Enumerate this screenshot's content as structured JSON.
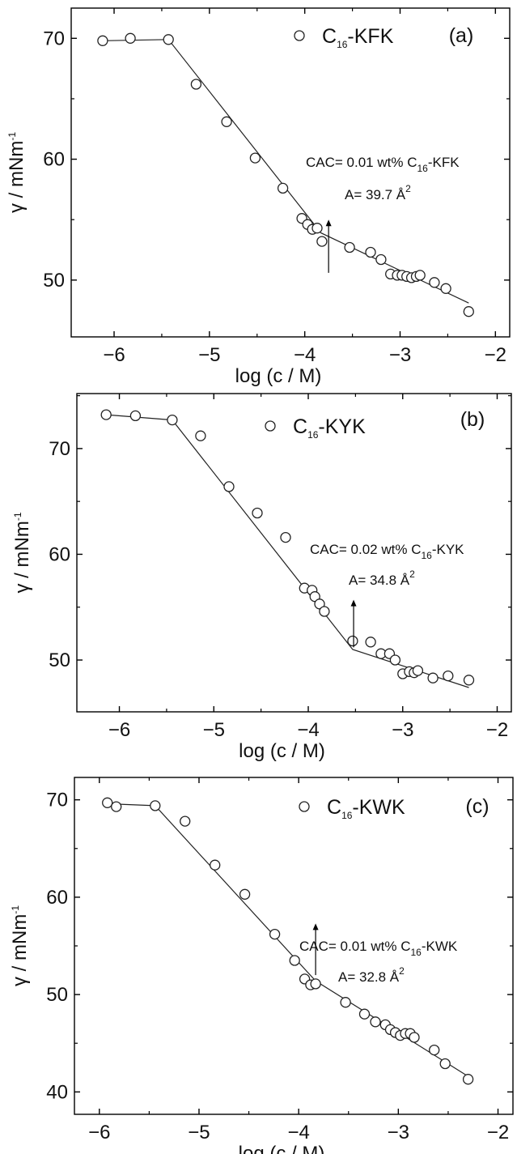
{
  "figure": {
    "colors": {
      "axis": "#000000",
      "marker_edge": "#222222",
      "marker_fill": "#ffffff",
      "fit_line": "#222222"
    }
  },
  "chart_data": [
    {
      "type": "scatter",
      "panel_label": "(a)",
      "xlabel": "log (c / M)",
      "ylabel": "γ / mNm",
      "ylabel_superscript": "-1",
      "xlim": [
        -6.45,
        -1.85
      ],
      "ylim": [
        45.3,
        72.5
      ],
      "xticks": [
        -6,
        -5,
        -4,
        -3,
        -2
      ],
      "yticks": [
        50,
        60,
        70
      ],
      "legend": {
        "marker": "open-circle",
        "prefix": "C",
        "subscript": "16",
        "suffix": "-KFK",
        "placement": "top-center"
      },
      "annotation": {
        "cac_prefix": "CAC= 0.01 wt% C",
        "cac_sub": "16",
        "cac_suffix": "-KFK",
        "area_text": "A= 39.7 Å",
        "area_sup": "2",
        "arrow_x": -3.75,
        "arrow_y_from": 50.6,
        "arrow_y_to": 55.0
      },
      "series": [
        {
          "x": [
            -6.12,
            -5.83,
            -5.43,
            -5.14,
            -4.82,
            -4.52,
            -4.23,
            -4.03,
            -3.97,
            -3.92,
            -3.87,
            -3.82,
            -3.53,
            -3.31,
            -3.2,
            -3.1,
            -3.03,
            -2.98,
            -2.93,
            -2.88,
            -2.83,
            -2.79,
            -2.64,
            -2.52,
            -2.28
          ],
          "y": [
            69.8,
            70.0,
            69.9,
            66.2,
            63.1,
            60.1,
            57.6,
            55.1,
            54.6,
            54.2,
            54.3,
            53.2,
            52.7,
            52.3,
            51.7,
            50.5,
            50.4,
            50.4,
            50.3,
            50.2,
            50.3,
            50.4,
            49.8,
            49.3,
            47.4
          ]
        }
      ],
      "fit_line": {
        "x": [
          -6.12,
          -5.43,
          -3.83,
          -2.28
        ],
        "y": [
          69.8,
          69.9,
          53.9,
          48.1
        ]
      }
    },
    {
      "type": "scatter",
      "panel_label": "(b)",
      "xlabel": "log (c / M)",
      "ylabel": "γ / mNm",
      "ylabel_superscript": "-1",
      "xlim": [
        -6.45,
        -1.85
      ],
      "ylim": [
        45.1,
        75.2
      ],
      "xticks": [
        -6,
        -5,
        -4,
        -3,
        -2
      ],
      "yticks": [
        50,
        60,
        70
      ],
      "legend": {
        "marker": "open-circle",
        "prefix": "C",
        "subscript": "16",
        "suffix": "-KYK",
        "placement": "top-center"
      },
      "annotation": {
        "cac_prefix": "CAC= 0.02 wt% C",
        "cac_sub": "16",
        "cac_suffix": "-KYK",
        "area_text": "A= 34.8 Å",
        "area_sup": "2",
        "arrow_x": -3.52,
        "arrow_y_from": 51.2,
        "arrow_y_to": 55.7
      },
      "series": [
        {
          "x": [
            -6.14,
            -5.83,
            -5.44,
            -5.14,
            -4.84,
            -4.54,
            -4.24,
            -4.04,
            -3.96,
            -3.93,
            -3.88,
            -3.83,
            -3.53,
            -3.34,
            -3.23,
            -3.14,
            -3.08,
            -3.0,
            -2.93,
            -2.88,
            -2.84,
            -2.68,
            -2.52,
            -2.3
          ],
          "y": [
            73.2,
            73.1,
            72.7,
            71.2,
            66.4,
            63.9,
            61.6,
            56.8,
            56.6,
            56.0,
            55.3,
            54.6,
            51.8,
            51.7,
            50.6,
            50.6,
            50.0,
            48.7,
            48.9,
            48.8,
            49.0,
            48.3,
            48.5,
            48.1
          ]
        }
      ],
      "fit_line": {
        "x": [
          -6.14,
          -5.44,
          -3.53,
          -2.3
        ],
        "y": [
          73.2,
          72.7,
          51.0,
          47.4
        ]
      }
    },
    {
      "type": "scatter",
      "panel_label": "(c)",
      "xlabel": "log (c / M)",
      "ylabel": "γ / mNm",
      "ylabel_superscript": "-1",
      "xlim": [
        -6.25,
        -1.85
      ],
      "ylim": [
        37.7,
        72.3
      ],
      "xticks": [
        -6,
        -5,
        -4,
        -3,
        -2
      ],
      "yticks": [
        40,
        50,
        60,
        70
      ],
      "legend": {
        "marker": "open-circle",
        "prefix": "C",
        "subscript": "16",
        "suffix": "-KWK",
        "placement": "top-center"
      },
      "annotation": {
        "cac_prefix": "CAC= 0.01 wt% C",
        "cac_sub": "16",
        "cac_suffix": "-KWK",
        "area_text": "A= 32.8 Å",
        "area_sup": "2",
        "arrow_x": -3.83,
        "arrow_y_from": 52.0,
        "arrow_y_to": 57.3
      },
      "series": [
        {
          "x": [
            -5.92,
            -5.83,
            -5.44,
            -5.14,
            -4.84,
            -4.54,
            -4.24,
            -4.04,
            -3.94,
            -3.88,
            -3.83,
            -3.53,
            -3.34,
            -3.23,
            -3.13,
            -3.08,
            -3.03,
            -2.98,
            -2.93,
            -2.88,
            -2.84,
            -2.64,
            -2.53,
            -2.3
          ],
          "y": [
            69.7,
            69.3,
            69.4,
            67.8,
            63.3,
            60.3,
            56.2,
            53.5,
            51.6,
            51.0,
            51.1,
            49.2,
            48.0,
            47.2,
            46.9,
            46.4,
            46.1,
            45.8,
            46.0,
            46.0,
            45.6,
            44.3,
            42.9,
            41.3
          ]
        }
      ],
      "fit_line": {
        "x": [
          -5.92,
          -5.44,
          -3.83,
          -2.3
        ],
        "y": [
          69.6,
          69.4,
          51.4,
          41.6
        ]
      }
    }
  ]
}
